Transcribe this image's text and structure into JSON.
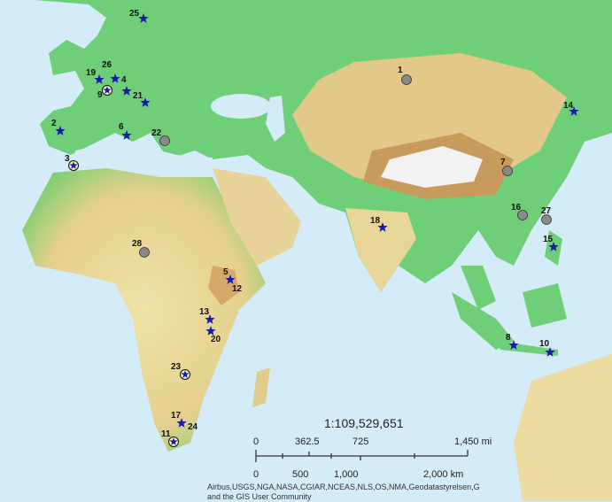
{
  "map": {
    "colors": {
      "ocean": "#d4ebf8",
      "lowland": "#5cc96a",
      "upland": "#e8dca0",
      "highland": "#d2a86a",
      "ice": "#f4f4f4",
      "star": "#1a1aa8",
      "circle": "#8a8a8a"
    },
    "sites": [
      {
        "id": "1",
        "type": "circle"
      },
      {
        "id": "2",
        "type": "star"
      },
      {
        "id": "3",
        "type": "circle-star"
      },
      {
        "id": "4",
        "type": "star"
      },
      {
        "id": "5",
        "type": "star"
      },
      {
        "id": "6",
        "type": "star"
      },
      {
        "id": "7",
        "type": "circle"
      },
      {
        "id": "8",
        "type": "star"
      },
      {
        "id": "9",
        "type": "circle-star"
      },
      {
        "id": "10",
        "type": "star"
      },
      {
        "id": "11",
        "type": "circle-star"
      },
      {
        "id": "12",
        "type": "star"
      },
      {
        "id": "13",
        "type": "star"
      },
      {
        "id": "14",
        "type": "star"
      },
      {
        "id": "15",
        "type": "star"
      },
      {
        "id": "16",
        "type": "circle"
      },
      {
        "id": "17",
        "type": "star"
      },
      {
        "id": "18",
        "type": "star"
      },
      {
        "id": "19",
        "type": "star"
      },
      {
        "id": "20",
        "type": "star"
      },
      {
        "id": "21",
        "type": "star"
      },
      {
        "id": "22",
        "type": "circle"
      },
      {
        "id": "23",
        "type": "circle-star"
      },
      {
        "id": "24",
        "type": "star"
      },
      {
        "id": "25",
        "type": "star"
      },
      {
        "id": "26",
        "type": "star"
      },
      {
        "id": "27",
        "type": "circle"
      },
      {
        "id": "28",
        "type": "circle"
      }
    ]
  },
  "scale": {
    "ratio": "1:109,529,651",
    "mi_labels": [
      "0",
      "362.5",
      "725",
      "1,450 mi"
    ],
    "km_labels": [
      "0",
      "500",
      "1,000",
      "2,000 km"
    ]
  },
  "attribution": {
    "line1": "Airbus,USGS,NGA,NASA,CGIAR,NCEAS,NLS,OS,NMA,Geodatastyrelsen,G",
    "line2": "and the GIS User Community"
  }
}
